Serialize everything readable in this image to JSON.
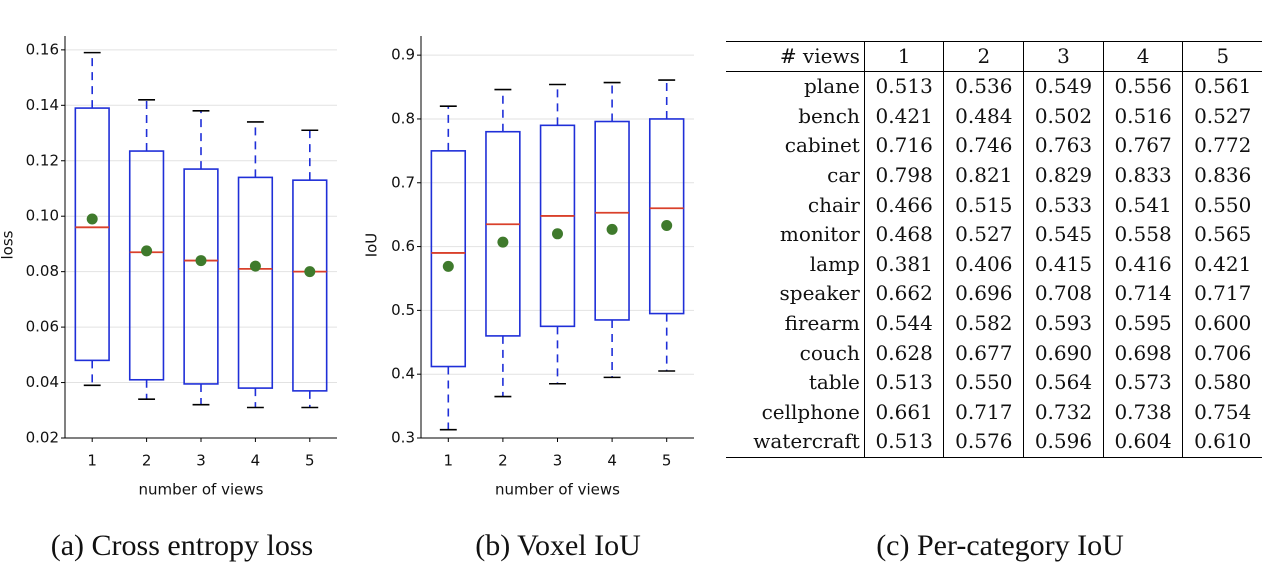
{
  "chart_data": [
    {
      "type": "box",
      "caption": "(a) Cross entropy loss",
      "xlabel": "number of views",
      "ylabel": "loss",
      "categories": [
        "1",
        "2",
        "3",
        "4",
        "5"
      ],
      "whisker_low": [
        0.039,
        0.034,
        0.032,
        0.031,
        0.031
      ],
      "q1": [
        0.048,
        0.041,
        0.0395,
        0.038,
        0.037
      ],
      "median": [
        0.096,
        0.087,
        0.084,
        0.081,
        0.08
      ],
      "q3": [
        0.139,
        0.1235,
        0.117,
        0.114,
        0.113
      ],
      "whisker_high": [
        0.159,
        0.142,
        0.138,
        0.134,
        0.131
      ],
      "mean": [
        0.099,
        0.0875,
        0.084,
        0.082,
        0.08
      ],
      "box_color": "#1f2fd8",
      "median_color": "#d9402b",
      "mean_color": "#3f7a2c",
      "ylim": [
        0.02,
        0.165
      ],
      "yticks": [
        0.02,
        0.04,
        0.06,
        0.08,
        {
          "value": 0.1,
          "label": "0.10"
        },
        0.12,
        0.14,
        0.16
      ],
      "grid": true
    },
    {
      "type": "box",
      "caption": "(b) Voxel IoU",
      "xlabel": "number of views",
      "ylabel": "IoU",
      "categories": [
        "1",
        "2",
        "3",
        "4",
        "5"
      ],
      "whisker_low": [
        0.313,
        0.365,
        0.385,
        0.395,
        0.405
      ],
      "q1": [
        0.412,
        0.46,
        0.475,
        0.485,
        0.495
      ],
      "median": [
        0.59,
        0.635,
        0.648,
        0.653,
        0.66
      ],
      "q3": [
        0.75,
        0.78,
        0.79,
        0.796,
        0.8
      ],
      "whisker_high": [
        0.82,
        0.846,
        0.854,
        0.857,
        0.861
      ],
      "mean": [
        0.569,
        0.607,
        0.62,
        0.627,
        0.633
      ],
      "box_color": "#1f2fd8",
      "median_color": "#d9402b",
      "mean_color": "#3f7a2c",
      "ylim": [
        0.3,
        0.93
      ],
      "yticks": [
        0.3,
        0.4,
        0.5,
        0.6,
        0.7,
        0.8,
        0.9
      ],
      "grid": true
    }
  ],
  "table": {
    "caption": "(c) Per-category IoU",
    "header": [
      "# views",
      "1",
      "2",
      "3",
      "4",
      "5"
    ],
    "rows": [
      [
        "plane",
        "0.513",
        "0.536",
        "0.549",
        "0.556",
        "0.561"
      ],
      [
        "bench",
        "0.421",
        "0.484",
        "0.502",
        "0.516",
        "0.527"
      ],
      [
        "cabinet",
        "0.716",
        "0.746",
        "0.763",
        "0.767",
        "0.772"
      ],
      [
        "car",
        "0.798",
        "0.821",
        "0.829",
        "0.833",
        "0.836"
      ],
      [
        "chair",
        "0.466",
        "0.515",
        "0.533",
        "0.541",
        "0.550"
      ],
      [
        "monitor",
        "0.468",
        "0.527",
        "0.545",
        "0.558",
        "0.565"
      ],
      [
        "lamp",
        "0.381",
        "0.406",
        "0.415",
        "0.416",
        "0.421"
      ],
      [
        "speaker",
        "0.662",
        "0.696",
        "0.708",
        "0.714",
        "0.717"
      ],
      [
        "firearm",
        "0.544",
        "0.582",
        "0.593",
        "0.595",
        "0.600"
      ],
      [
        "couch",
        "0.628",
        "0.677",
        "0.690",
        "0.698",
        "0.706"
      ],
      [
        "table",
        "0.513",
        "0.550",
        "0.564",
        "0.573",
        "0.580"
      ],
      [
        "cellphone",
        "0.661",
        "0.717",
        "0.732",
        "0.738",
        "0.754"
      ],
      [
        "watercraft",
        "0.513",
        "0.576",
        "0.596",
        "0.604",
        "0.610"
      ]
    ]
  }
}
